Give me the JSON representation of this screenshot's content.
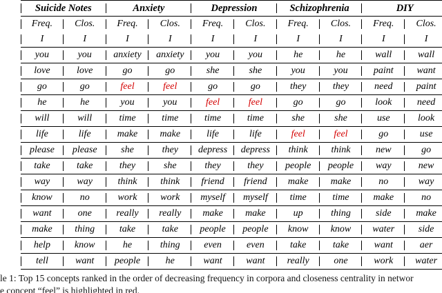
{
  "table": {
    "groups": [
      "Suicide Notes",
      "Anxiety",
      "Depression",
      "Schizophrenia",
      "DIY"
    ],
    "subheaders": [
      "Freq.",
      "Clos."
    ],
    "highlight_word": "feel",
    "highlight_color": "#d40000",
    "rows": [
      [
        "I",
        "I",
        "I",
        "I",
        "I",
        "I",
        "I",
        "I",
        "I",
        "I"
      ],
      [
        "you",
        "you",
        "anxiety",
        "anxiety",
        "you",
        "you",
        "he",
        "he",
        "wall",
        "wall"
      ],
      [
        "love",
        "love",
        "go",
        "go",
        "she",
        "she",
        "you",
        "you",
        "paint",
        "want"
      ],
      [
        "go",
        "go",
        "feel",
        "feel",
        "go",
        "go",
        "they",
        "they",
        "need",
        "paint"
      ],
      [
        "he",
        "he",
        "you",
        "you",
        "feel",
        "feel",
        "go",
        "go",
        "look",
        "need"
      ],
      [
        "will",
        "will",
        "time",
        "time",
        "time",
        "time",
        "she",
        "she",
        "use",
        "look"
      ],
      [
        "life",
        "life",
        "make",
        "make",
        "life",
        "life",
        "feel",
        "feel",
        "go",
        "use"
      ],
      [
        "please",
        "please",
        "she",
        "they",
        "depress",
        "depress",
        "think",
        "think",
        "new",
        "go"
      ],
      [
        "take",
        "take",
        "they",
        "she",
        "they",
        "they",
        "people",
        "people",
        "way",
        "new"
      ],
      [
        "way",
        "way",
        "think",
        "think",
        "friend",
        "friend",
        "make",
        "make",
        "no",
        "way"
      ],
      [
        "know",
        "no",
        "work",
        "work",
        "myself",
        "myself",
        "time",
        "time",
        "make",
        "no"
      ],
      [
        "want",
        "one",
        "really",
        "really",
        "make",
        "make",
        "up",
        "thing",
        "side",
        "make"
      ],
      [
        "make",
        "thing",
        "take",
        "take",
        "people",
        "people",
        "know",
        "know",
        "water",
        "side"
      ],
      [
        "help",
        "know",
        "he",
        "thing",
        "even",
        "even",
        "take",
        "take",
        "want",
        "aer"
      ],
      [
        "tell",
        "want",
        "people",
        "he",
        "want",
        "want",
        "really",
        "one",
        "work",
        "water"
      ]
    ]
  },
  "caption": {
    "line1": "le 1: Top 15 concepts ranked in the order of decreasing frequency in corpora and closeness centrality in networ",
    "line2": "e concept “feel” is highlighted in red."
  }
}
